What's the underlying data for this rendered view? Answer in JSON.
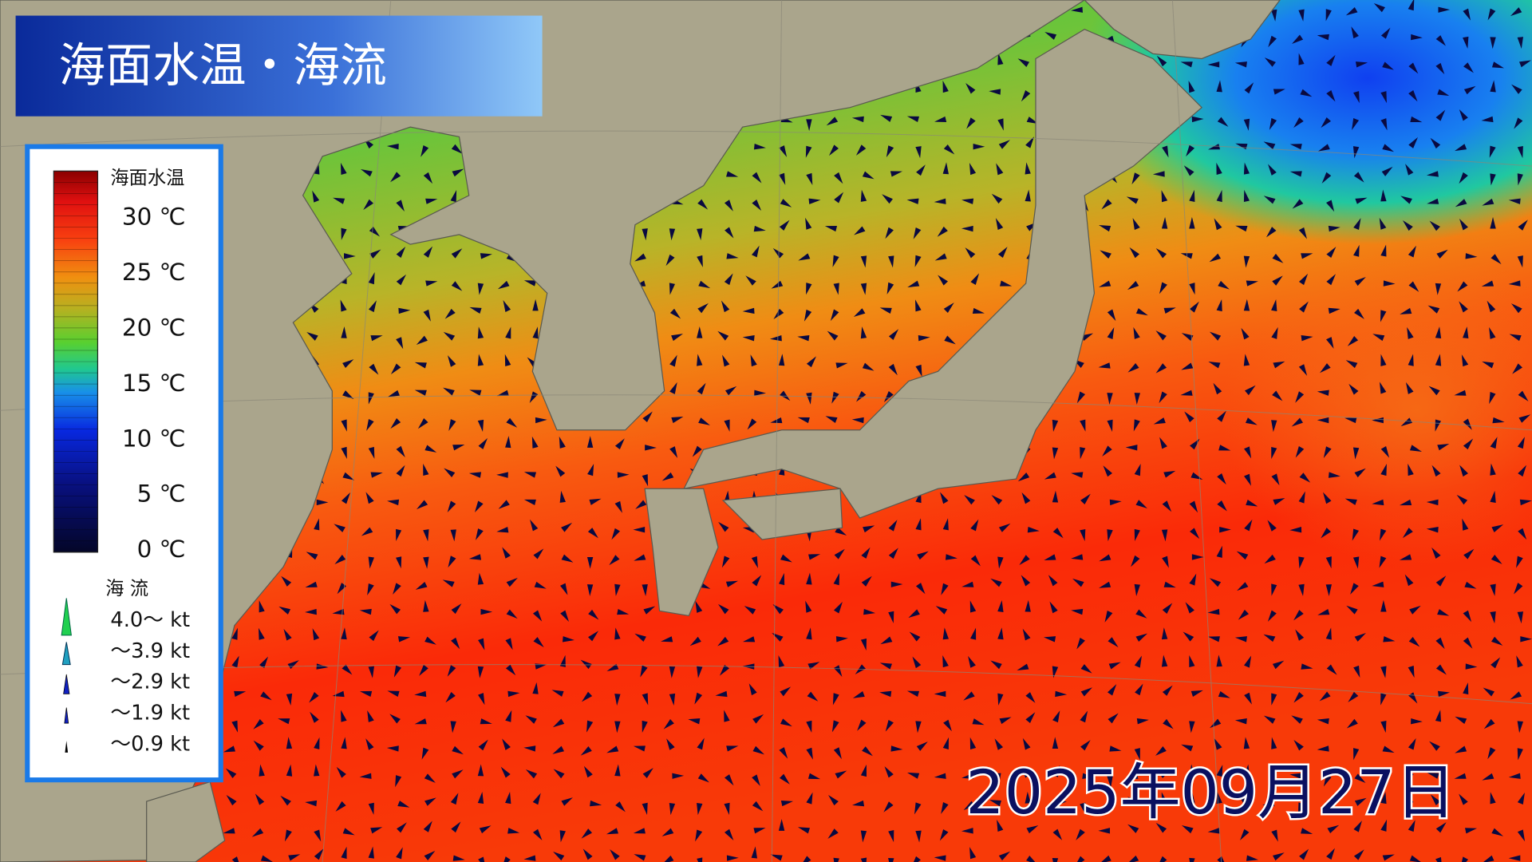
{
  "header": {
    "title": "海面水温・海流"
  },
  "legend": {
    "title": "海面水温",
    "ticks": [
      "30 ℃",
      "25 ℃",
      "20 ℃",
      "15 ℃",
      "10 ℃",
      "5 ℃",
      "0 ℃"
    ]
  },
  "current_legend": {
    "title": "海 流",
    "items": [
      "4.0～ kt",
      "～3.9 kt",
      "～2.9 kt",
      "～1.9 kt",
      "～0.9 kt"
    ]
  },
  "date": "2025年09月27日"
}
